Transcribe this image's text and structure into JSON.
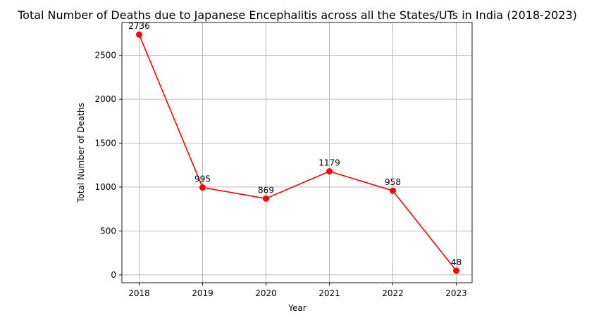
{
  "chart_data": {
    "type": "line",
    "title": "Total Number of Deaths due to Japanese Encephalitis across all the States/UTs in India (2018-2023)",
    "xlabel": "Year",
    "ylabel": "Total Number of Deaths",
    "x": [
      "2018",
      "2019",
      "2020",
      "2021",
      "2022",
      "2023"
    ],
    "series": [
      {
        "values": [
          2736,
          995,
          869,
          1179,
          958,
          48
        ],
        "color": "#ff0000",
        "marker": "circle"
      }
    ],
    "data_labels": [
      "2736",
      "995",
      "869",
      "1179",
      "958",
      "48"
    ],
    "yticks": [
      0,
      500,
      1000,
      1500,
      2000,
      2500
    ],
    "ylim": [
      -89.4,
      2873.4
    ],
    "grid": true,
    "legend": "none"
  }
}
